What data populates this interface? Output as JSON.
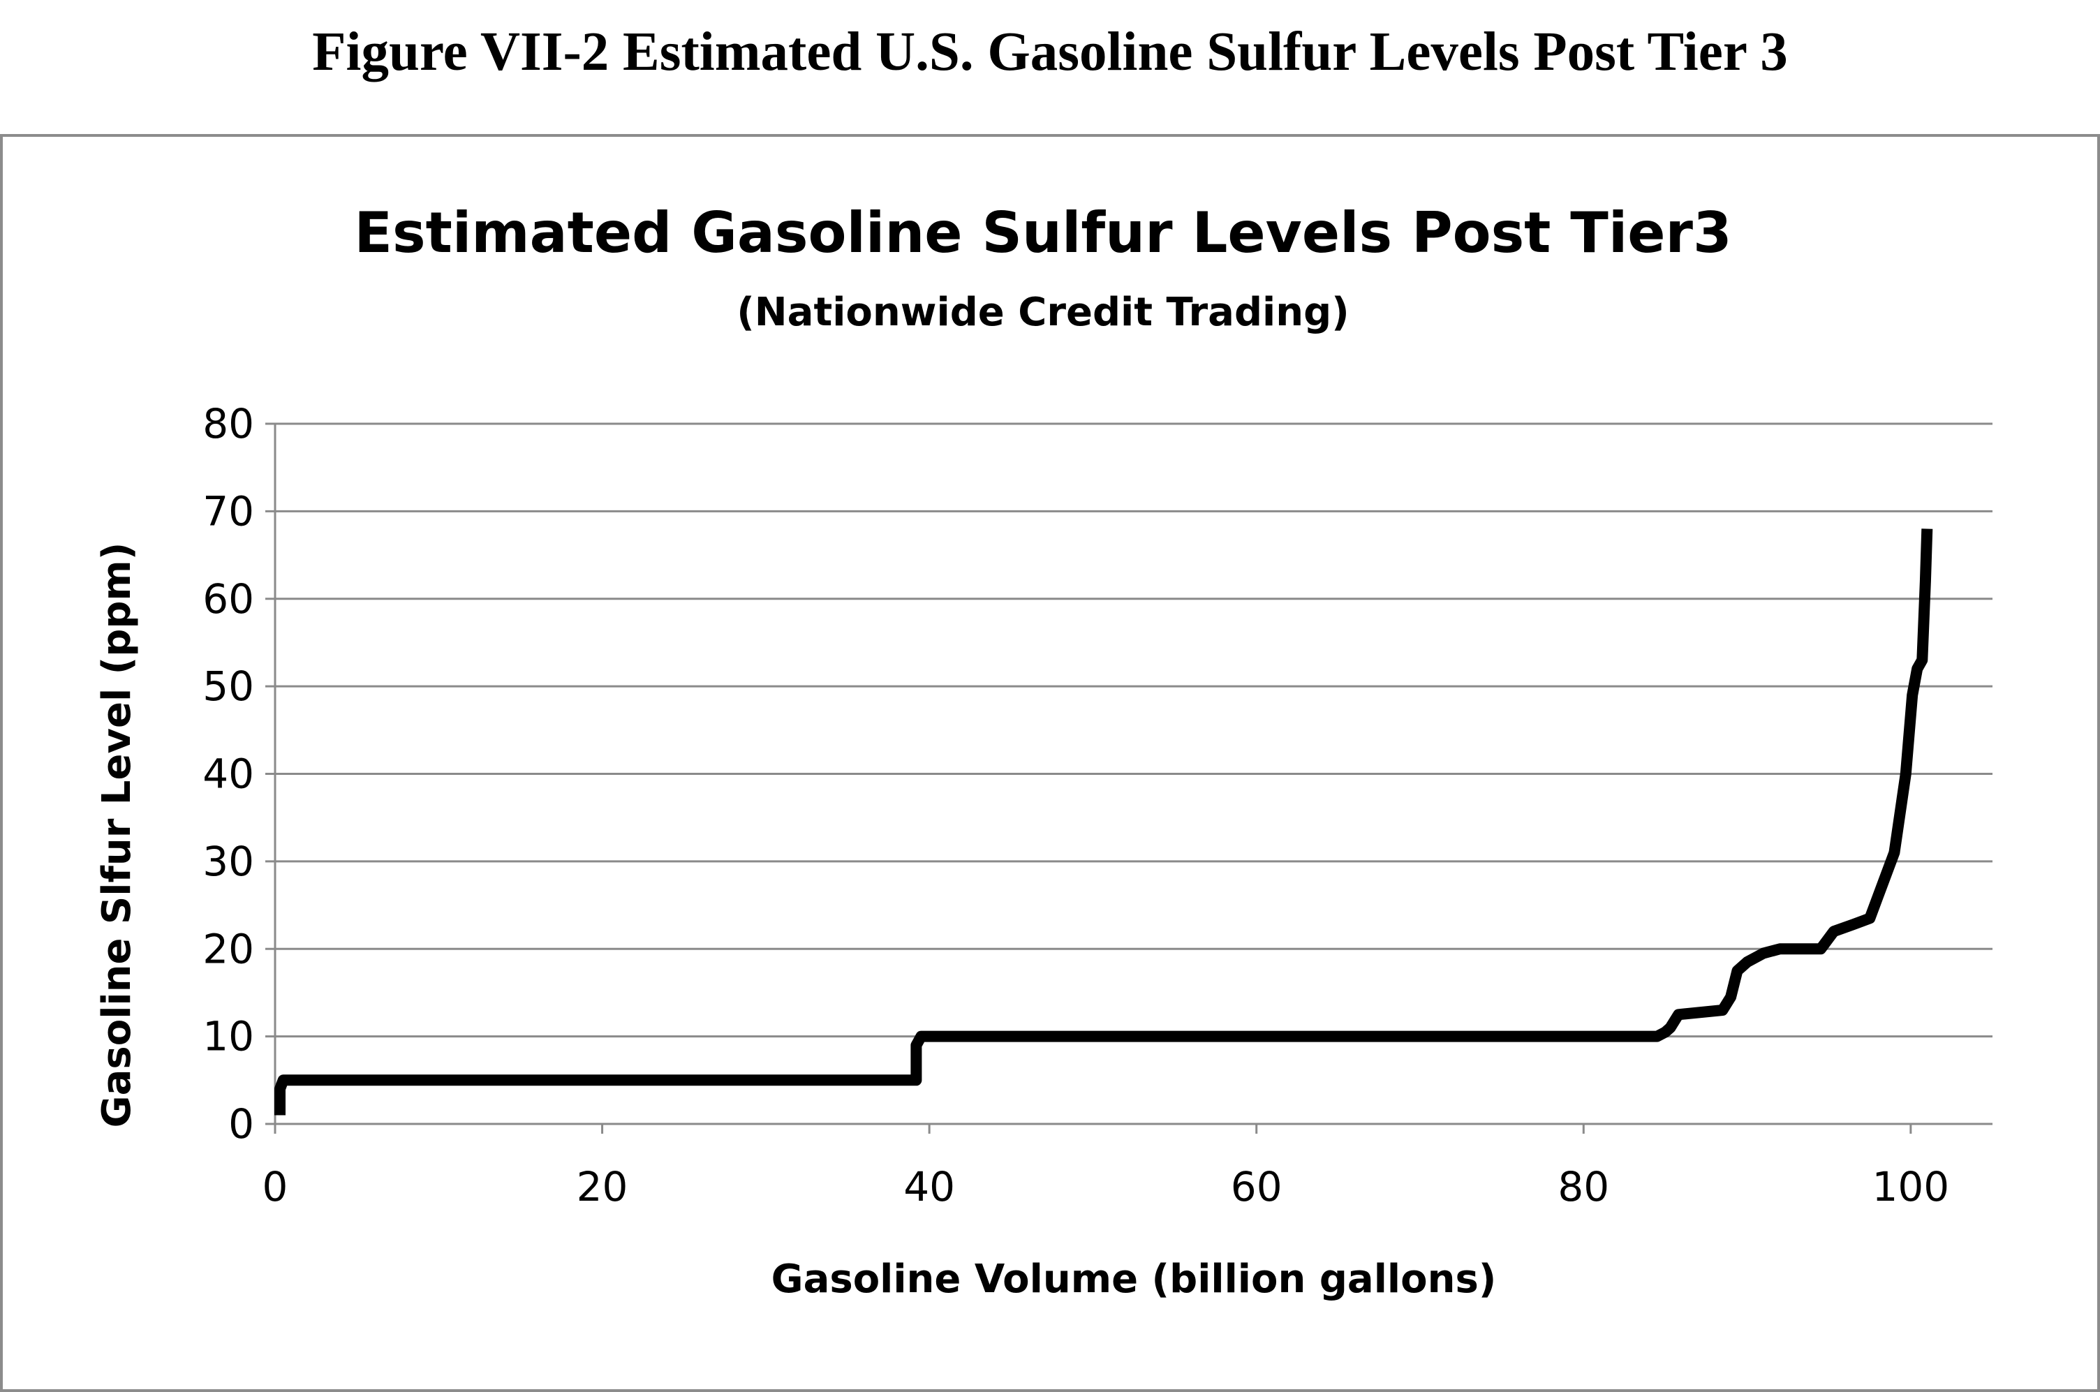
{
  "figure_caption": "Figure VII-2 Estimated U.S. Gasoline Sulfur Levels Post Tier 3",
  "chart_data": {
    "type": "line",
    "title": "Estimated Gasoline Sulfur Levels Post Tier3",
    "subtitle": "(Nationwide Credit Trading)",
    "xlabel": "Gasoline Volume (billion gallons)",
    "ylabel": "Gasoline Slfur Level (ppm)",
    "xlim": [
      0,
      105
    ],
    "ylim": [
      0,
      80
    ],
    "xticks": [
      0,
      20,
      40,
      60,
      80,
      100
    ],
    "yticks": [
      0,
      10,
      20,
      30,
      40,
      50,
      60,
      70,
      80
    ],
    "grid": "horizontal",
    "legend": "none",
    "color": "#000000",
    "series": [
      {
        "name": "Estimated sulfur level",
        "x": [
          0.3,
          0.3,
          0.5,
          39.2,
          39.2,
          39.5,
          84.5,
          85.0,
          85.3,
          85.8,
          88.5,
          89.0,
          89.4,
          90.0,
          91.0,
          92.0,
          94.5,
          95.3,
          96.5,
          97.5,
          98.0,
          99.0,
          99.7,
          100.1,
          100.4,
          100.7,
          100.9,
          100.95,
          101.0
        ],
        "y": [
          1,
          4,
          5,
          5,
          9,
          10,
          10,
          10.5,
          11,
          12.5,
          13,
          14.5,
          17.5,
          18.5,
          19.5,
          20,
          20,
          22,
          22.8,
          23.5,
          26,
          31,
          40,
          49,
          52,
          53,
          62,
          65,
          68
        ]
      }
    ]
  }
}
